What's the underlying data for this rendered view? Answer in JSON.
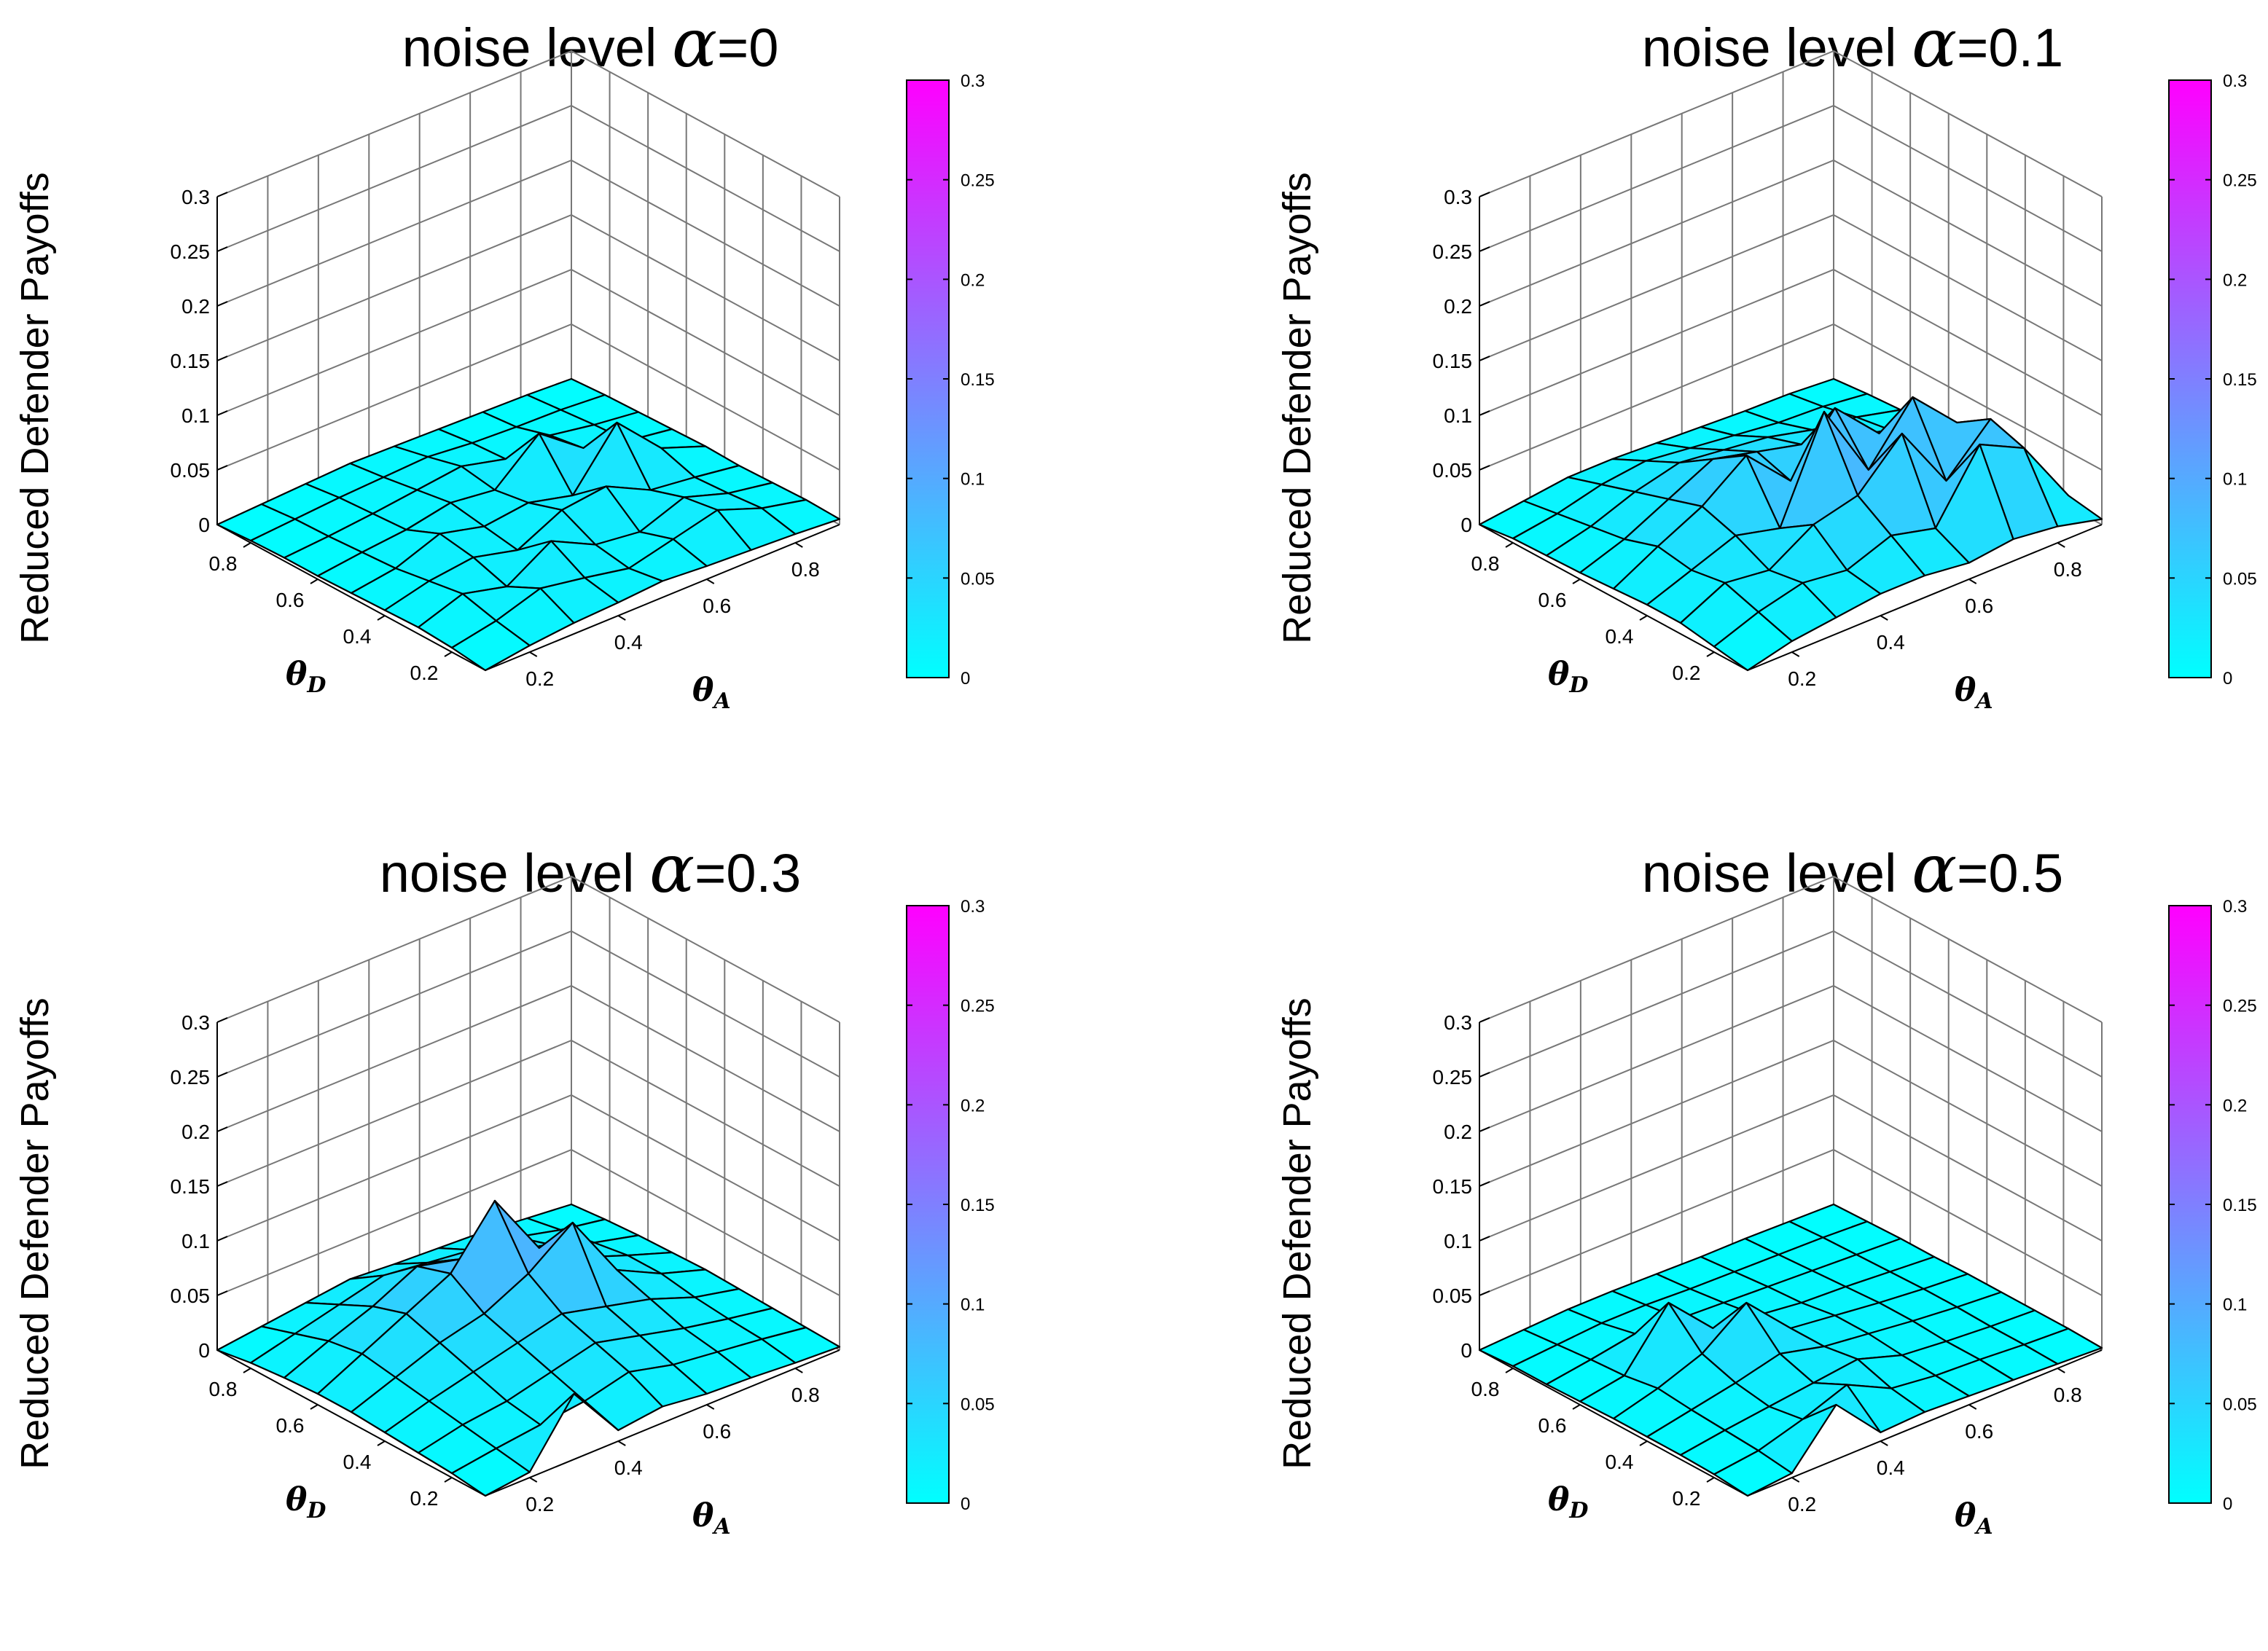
{
  "chart_data": [
    {
      "type": "surface3d",
      "title_prefix": "noise level ",
      "alpha_symbol": "α",
      "title_suffix": "=0",
      "zlabel": "Reduced Defender Payoffs",
      "xlabel": "θ",
      "xlabel_sub": "A",
      "ylabel": "θ",
      "ylabel_sub": "D",
      "zlim": [
        0,
        0.3
      ],
      "zticks": [
        "0",
        "0.05",
        "0.1",
        "0.15",
        "0.2",
        "0.25",
        "0.3"
      ],
      "xticks": [
        "0.2",
        "0.4",
        "0.6",
        "0.8"
      ],
      "yticks": [
        "0.2",
        "0.4",
        "0.6",
        "0.8"
      ],
      "colorbar_ticks": [
        "0",
        "0.05",
        "0.1",
        "0.15",
        "0.2",
        "0.25",
        "0.3"
      ],
      "colormap": [
        "#00ffff",
        "#ff00ff"
      ],
      "grid": true,
      "theta_A": [
        0.1,
        0.2,
        0.3,
        0.4,
        0.5,
        0.6,
        0.7,
        0.8,
        0.9
      ],
      "theta_D": [
        0.1,
        0.2,
        0.3,
        0.4,
        0.5,
        0.6,
        0.7,
        0.8,
        0.9
      ],
      "Z": [
        [
          0,
          0.006,
          0.01,
          0.012,
          0.015,
          0.012,
          0.01,
          0.008,
          0.005
        ],
        [
          0.004,
          0.012,
          0.025,
          0.018,
          0.01,
          0.02,
          0.03,
          0.015,
          0.006
        ],
        [
          0.006,
          0.02,
          0.01,
          0.035,
          0.015,
          0.01,
          0.025,
          0.012,
          0.005
        ],
        [
          0.005,
          0.015,
          0.02,
          0.01,
          0.03,
          0.035,
          0.015,
          0.01,
          0.004
        ],
        [
          0.004,
          0.01,
          0.025,
          0.015,
          0.02,
          0.01,
          0.06,
          0.02,
          0.005
        ],
        [
          0.003,
          0.008,
          0.012,
          0.02,
          0.015,
          0.05,
          0.02,
          0.01,
          0.004
        ],
        [
          0.003,
          0.006,
          0.01,
          0.015,
          0.02,
          0.01,
          0.015,
          0.008,
          0.003
        ],
        [
          0.002,
          0.005,
          0.008,
          0.01,
          0.012,
          0.008,
          0.006,
          0.005,
          0.002
        ],
        [
          0,
          0.002,
          0.004,
          0.006,
          0.005,
          0.004,
          0.003,
          0.002,
          0
        ]
      ]
    },
    {
      "type": "surface3d",
      "title_prefix": "noise level ",
      "alpha_symbol": "α",
      "title_suffix": "=0.1",
      "zlabel": "Reduced Defender Payoffs",
      "xlabel": "θ",
      "xlabel_sub": "A",
      "ylabel": "θ",
      "ylabel_sub": "D",
      "zlim": [
        0,
        0.3
      ],
      "zticks": [
        "0",
        "0.05",
        "0.1",
        "0.15",
        "0.2",
        "0.25",
        "0.3"
      ],
      "xticks": [
        "0.2",
        "0.4",
        "0.6",
        "0.8"
      ],
      "yticks": [
        "0.2",
        "0.4",
        "0.6",
        "0.8"
      ],
      "colorbar_ticks": [
        "0",
        "0.05",
        "0.1",
        "0.15",
        "0.2",
        "0.25",
        "0.3"
      ],
      "colormap": [
        "#00ffff",
        "#ff00ff"
      ],
      "grid": true,
      "theta_A": [
        0.1,
        0.2,
        0.3,
        0.4,
        0.5,
        0.6,
        0.7,
        0.8,
        0.9
      ],
      "theta_D": [
        0.1,
        0.2,
        0.3,
        0.4,
        0.5,
        0.6,
        0.7,
        0.8,
        0.9
      ],
      "Z": [
        [
          0,
          0.01,
          0.015,
          0.02,
          0.02,
          0.015,
          0.02,
          0.015,
          0.005
        ],
        [
          0.005,
          0.02,
          0.03,
          0.025,
          0.04,
          0.03,
          0.09,
          0.07,
          0.01
        ],
        [
          0.01,
          0.03,
          0.025,
          0.05,
          0.06,
          0.1,
          0.04,
          0.08,
          0.02
        ],
        [
          0.01,
          0.025,
          0.04,
          0.03,
          0.12,
          0.05,
          0.1,
          0.06,
          0.015
        ],
        [
          0.008,
          0.03,
          0.05,
          0.08,
          0.04,
          0.09,
          0.05,
          0.03,
          0.01
        ],
        [
          0.006,
          0.02,
          0.04,
          0.06,
          0.05,
          0.04,
          0.03,
          0.02,
          0.008
        ],
        [
          0.005,
          0.015,
          0.03,
          0.04,
          0.035,
          0.03,
          0.02,
          0.015,
          0.005
        ],
        [
          0.004,
          0.01,
          0.02,
          0.025,
          0.02,
          0.015,
          0.01,
          0.008,
          0.003
        ],
        [
          0,
          0.005,
          0.01,
          0.01,
          0.008,
          0.006,
          0.004,
          0.003,
          0
        ]
      ]
    },
    {
      "type": "surface3d",
      "title_prefix": "noise level  ",
      "alpha_symbol": "α",
      "title_suffix": "=0.3",
      "zlabel": "Reduced Defender Payoffs",
      "xlabel": "θ",
      "xlabel_sub": "A",
      "ylabel": "θ",
      "ylabel_sub": "D",
      "zlim": [
        0,
        0.3
      ],
      "zticks": [
        "0",
        "0.05",
        "0.1",
        "0.15",
        "0.2",
        "0.25",
        "0.3"
      ],
      "xticks": [
        "0.2",
        "0.4",
        "0.6",
        "0.8"
      ],
      "yticks": [
        "0.2",
        "0.4",
        "0.6",
        "0.8"
      ],
      "colorbar_ticks": [
        "0",
        "0.05",
        "0.1",
        "0.15",
        "0.2",
        "0.25",
        "0.3"
      ],
      "colormap": [
        "#00ffff",
        "#ff00ff"
      ],
      "grid": true,
      "theta_A": [
        0.1,
        0.2,
        0.3,
        0.4,
        0.5,
        0.6,
        0.7,
        0.8,
        0.9
      ],
      "theta_D": [
        0.1,
        0.2,
        0.3,
        0.4,
        0.5,
        0.6,
        0.7,
        0.8,
        0.9
      ],
      "Z": [
        [
          0,
          0.005,
          0.06,
          0.01,
          0.015,
          0.01,
          0.008,
          0.005,
          0.003
        ],
        [
          0.004,
          0.01,
          0.015,
          0.02,
          0.03,
          0.02,
          0.015,
          0.01,
          0.004
        ],
        [
          0.006,
          0.015,
          0.02,
          0.03,
          0.04,
          0.03,
          0.02,
          0.012,
          0.005
        ],
        [
          0.008,
          0.02,
          0.03,
          0.04,
          0.05,
          0.04,
          0.03,
          0.015,
          0.006
        ],
        [
          0.01,
          0.025,
          0.04,
          0.05,
          0.07,
          0.1,
          0.04,
          0.02,
          0.007
        ],
        [
          0.01,
          0.03,
          0.05,
          0.07,
          0.12,
          0.06,
          0.035,
          0.02,
          0.006
        ],
        [
          0.008,
          0.025,
          0.04,
          0.06,
          0.05,
          0.04,
          0.03,
          0.015,
          0.005
        ],
        [
          0.005,
          0.015,
          0.025,
          0.035,
          0.03,
          0.025,
          0.02,
          0.01,
          0.003
        ],
        [
          0,
          0.005,
          0.01,
          0.015,
          0.012,
          0.01,
          0.008,
          0.004,
          0
        ]
      ]
    },
    {
      "type": "surface3d",
      "title_prefix": "noise level ",
      "alpha_symbol": "α",
      "title_suffix": "=0.5",
      "zlabel": "Reduced Defender Payoffs",
      "xlabel": "θ",
      "xlabel_sub": "A",
      "ylabel": "θ",
      "ylabel_sub": "D",
      "zlim": [
        0,
        0.3
      ],
      "zticks": [
        "0",
        "0.05",
        "0.1",
        "0.15",
        "0.2",
        "0.25",
        "0.3"
      ],
      "xticks": [
        "0.2",
        "0.4",
        "0.6",
        "0.8"
      ],
      "yticks": [
        "0.2",
        "0.4",
        "0.6",
        "0.8"
      ],
      "colorbar_ticks": [
        "0",
        "0.05",
        "0.1",
        "0.15",
        "0.2",
        "0.25",
        "0.3"
      ],
      "colormap": [
        "#00ffff",
        "#ff00ff"
      ],
      "grid": true,
      "theta_A": [
        0.1,
        0.2,
        0.3,
        0.4,
        0.5,
        0.6,
        0.7,
        0.8,
        0.9
      ],
      "theta_D": [
        0.1,
        0.2,
        0.3,
        0.4,
        0.5,
        0.6,
        0.7,
        0.8,
        0.9
      ],
      "Z": [
        [
          0,
          0.004,
          0.05,
          0.008,
          0.01,
          0.008,
          0.006,
          0.004,
          0.002
        ],
        [
          0.003,
          0.008,
          0.02,
          0.035,
          0.015,
          0.01,
          0.008,
          0.005,
          0.003
        ],
        [
          0.004,
          0.01,
          0.015,
          0.02,
          0.025,
          0.012,
          0.008,
          0.005,
          0.003
        ],
        [
          0.004,
          0.012,
          0.02,
          0.03,
          0.02,
          0.015,
          0.01,
          0.006,
          0.003
        ],
        [
          0.004,
          0.015,
          0.03,
          0.06,
          0.02,
          0.015,
          0.01,
          0.006,
          0.003
        ],
        [
          0.003,
          0.01,
          0.06,
          0.02,
          0.015,
          0.01,
          0.008,
          0.005,
          0.002
        ],
        [
          0.002,
          0.008,
          0.015,
          0.012,
          0.01,
          0.008,
          0.006,
          0.004,
          0.002
        ],
        [
          0.002,
          0.005,
          0.008,
          0.008,
          0.006,
          0.005,
          0.004,
          0.003,
          0.001
        ],
        [
          0,
          0.002,
          0.004,
          0.004,
          0.003,
          0.002,
          0.002,
          0.001,
          0
        ]
      ]
    }
  ]
}
